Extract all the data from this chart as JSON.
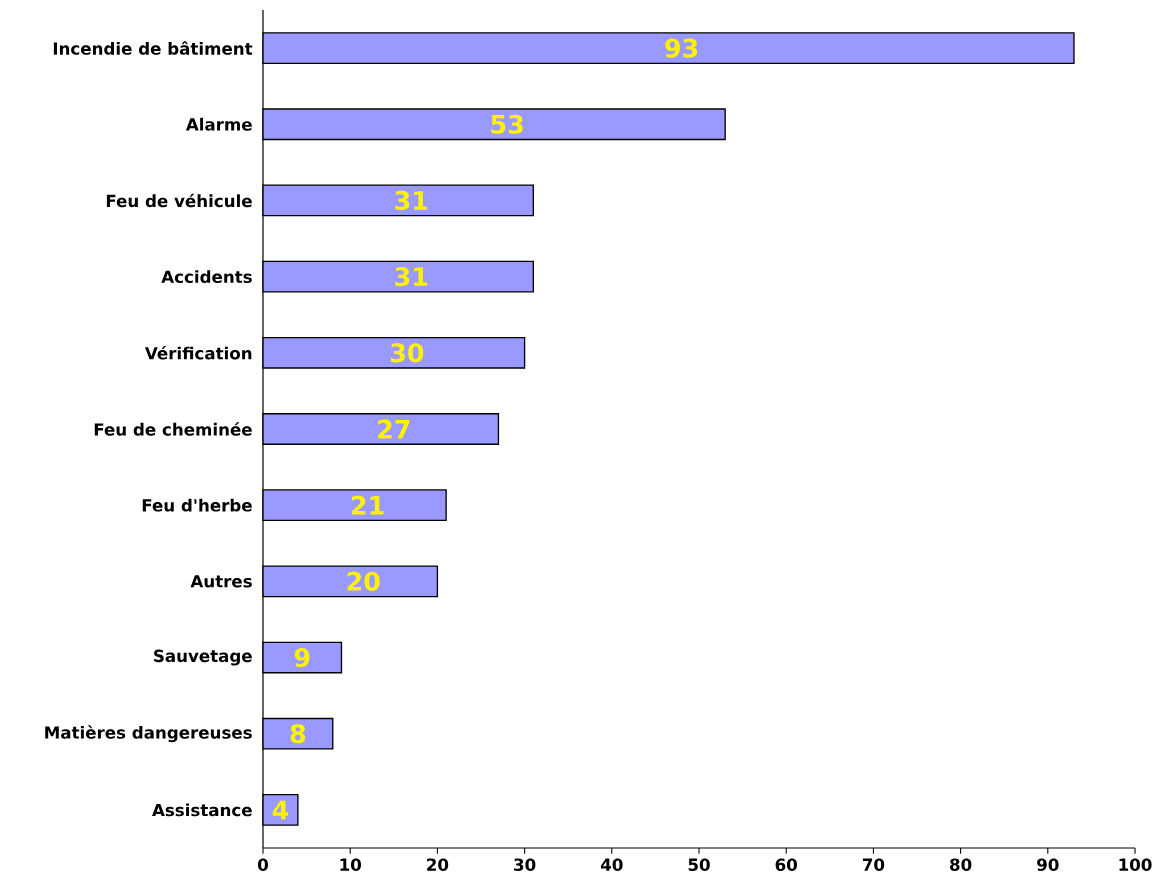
{
  "chart_data": {
    "type": "bar",
    "orientation": "horizontal",
    "categories": [
      "Incendie de bâtiment",
      "Alarme",
      "Feu de véhicule",
      "Accidents",
      "Vérification",
      "Feu de cheminée",
      "Feu d'herbe",
      "Autres",
      "Sauvetage",
      "Matières dangereuses",
      "Assistance"
    ],
    "values": [
      93,
      53,
      31,
      31,
      30,
      27,
      21,
      20,
      9,
      8,
      4
    ],
    "color": "#9999ff",
    "xlim": [
      0,
      100
    ],
    "xticks": [
      0,
      10,
      20,
      30,
      40,
      50,
      60,
      70,
      80,
      90,
      100
    ],
    "data_labels": true,
    "grid": false
  }
}
